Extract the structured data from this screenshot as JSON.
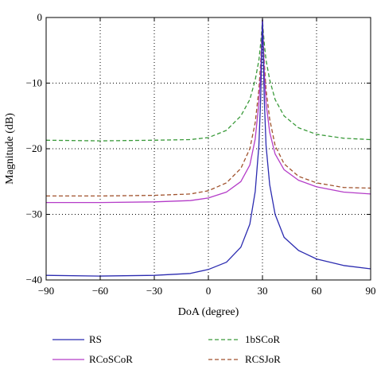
{
  "chart_data": {
    "type": "line",
    "xlabel": "DoA (degree)",
    "ylabel": "Magnitude (dB)",
    "xlim": [
      -90,
      90
    ],
    "ylim": [
      -40,
      0
    ],
    "xticks": [
      -90,
      -60,
      -30,
      0,
      30,
      60,
      90
    ],
    "yticks": [
      0,
      -10,
      -20,
      -30,
      -40
    ],
    "xtick_labels": [
      "−90",
      "−60",
      "−30",
      "0",
      "30",
      "60",
      "90"
    ],
    "ytick_labels": [
      "0",
      "−10",
      "−20",
      "−30",
      "−40"
    ],
    "grid": true,
    "legend_placement": "below",
    "series": [
      {
        "name": "RS",
        "color": "#2b2bb0",
        "dash": "solid",
        "x": [
          -90,
          -60,
          -30,
          -10,
          0,
          10,
          18,
          23,
          26,
          28,
          29,
          29.5,
          30,
          30.5,
          31,
          32,
          34,
          37,
          42,
          50,
          60,
          75,
          90
        ],
        "y": [
          -39.3,
          -39.4,
          -39.3,
          -39.0,
          -38.4,
          -37.3,
          -35.0,
          -31.5,
          -26.5,
          -19.5,
          -12.5,
          -6.0,
          -0.3,
          -6.0,
          -12.5,
          -19.5,
          -25.5,
          -30.0,
          -33.5,
          -35.5,
          -36.8,
          -37.8,
          -38.3
        ]
      },
      {
        "name": "RCoSCoR",
        "color": "#b43cc8",
        "dash": "solid",
        "x": [
          -90,
          -60,
          -30,
          -10,
          0,
          10,
          18,
          23,
          26,
          28,
          29,
          29.5,
          30,
          30.5,
          31,
          32,
          34,
          37,
          42,
          50,
          60,
          75,
          90
        ],
        "y": [
          -28.2,
          -28.2,
          -28.1,
          -27.9,
          -27.5,
          -26.6,
          -25.0,
          -22.5,
          -18.5,
          -13.0,
          -8.5,
          -4.5,
          -0.3,
          -4.5,
          -8.5,
          -13.0,
          -17.5,
          -20.8,
          -23.2,
          -24.8,
          -25.8,
          -26.6,
          -26.9
        ]
      },
      {
        "name": "1bSCoR",
        "color": "#3a9a3a",
        "dash": "dashed",
        "x": [
          -90,
          -60,
          -30,
          -10,
          0,
          10,
          18,
          23,
          26,
          28,
          29,
          29.5,
          30,
          30.5,
          31,
          32,
          34,
          37,
          42,
          50,
          60,
          75,
          90
        ],
        "y": [
          -18.7,
          -18.8,
          -18.7,
          -18.6,
          -18.3,
          -17.2,
          -15.0,
          -12.5,
          -9.5,
          -6.5,
          -4.0,
          -2.2,
          -0.3,
          -2.2,
          -4.0,
          -6.5,
          -9.5,
          -12.5,
          -15.0,
          -16.8,
          -17.8,
          -18.4,
          -18.6
        ]
      },
      {
        "name": "RCSJoR",
        "color": "#a0522d",
        "dash": "dashed",
        "x": [
          -90,
          -60,
          -30,
          -10,
          0,
          10,
          18,
          23,
          26,
          28,
          29,
          29.5,
          30,
          30.5,
          31,
          32,
          34,
          37,
          42,
          50,
          60,
          75,
          90
        ],
        "y": [
          -27.2,
          -27.2,
          -27.1,
          -26.9,
          -26.4,
          -25.2,
          -23.0,
          -20.0,
          -16.0,
          -11.0,
          -7.0,
          -3.6,
          -0.3,
          -3.6,
          -7.0,
          -11.0,
          -15.5,
          -19.5,
          -22.3,
          -24.2,
          -25.2,
          -25.9,
          -26.0
        ]
      }
    ]
  }
}
